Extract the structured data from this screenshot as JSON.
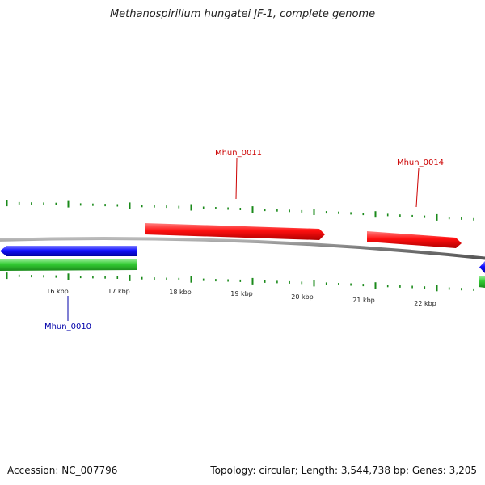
{
  "title": "Methanospirillum hungatei JF-1, complete genome",
  "footer": {
    "accession": "Accession: NC_007796",
    "summary": "Topology: circular; Length: 3,544,738 bp; Genes: 3,205"
  },
  "ruler": {
    "unit": "kbp",
    "labels": [
      "16 kbp",
      "17 kbp",
      "18 kbp",
      "19 kbp",
      "20 kbp",
      "21 kbp",
      "22 kbp"
    ]
  },
  "genes": [
    {
      "name": "Mhun_0010",
      "strand": "reverse",
      "color": "#0000cc"
    },
    {
      "name": "Mhun_0011",
      "strand": "forward",
      "color": "#cc0000"
    },
    {
      "name": "Mhun_0014",
      "strand": "forward",
      "color": "#cc0000"
    }
  ],
  "colors": {
    "forward_gene": "#ff1a1a",
    "reverse_gene": "#1a1aff",
    "rna_track": "#33cc33",
    "backbone": "#888888",
    "ticks": "#1a8a1a",
    "forward_label": "#cc0000",
    "reverse_label": "#0000aa"
  }
}
